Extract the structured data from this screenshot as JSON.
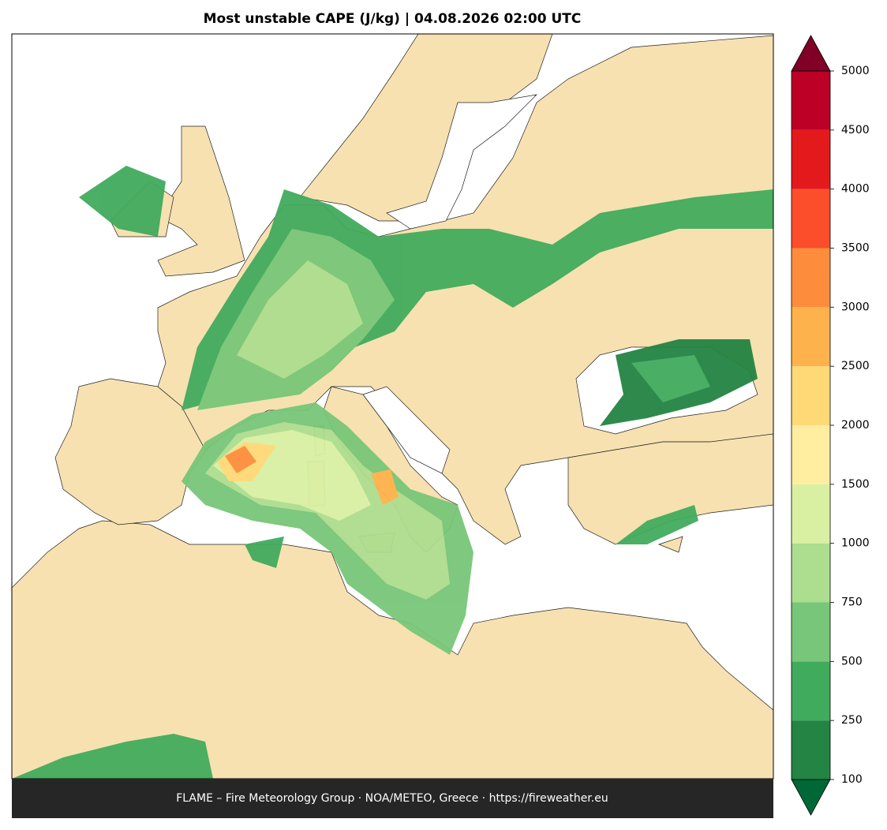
{
  "map": {
    "title": "Most unstable CAPE (J/kg)  |  04.08.2026 02:00 UTC",
    "footer": "FLAME – Fire Meteorology Group · NOA/METEO, Greece · https://fireweather.eu",
    "colorbar": {
      "levels": [
        100,
        250,
        500,
        750,
        1000,
        1500,
        2000,
        2500,
        3000,
        3500,
        4000,
        4500,
        5000
      ],
      "colors": [
        "#238443",
        "#41ab5d",
        "#78c679",
        "#addd8e",
        "#d9f0a3",
        "#ffeda0",
        "#fed976",
        "#feb24c",
        "#fd8d3c",
        "#fc4e2a",
        "#e31a1c",
        "#bd0026"
      ],
      "under_color": "#006837",
      "over_color": "#800026"
    }
  }
}
